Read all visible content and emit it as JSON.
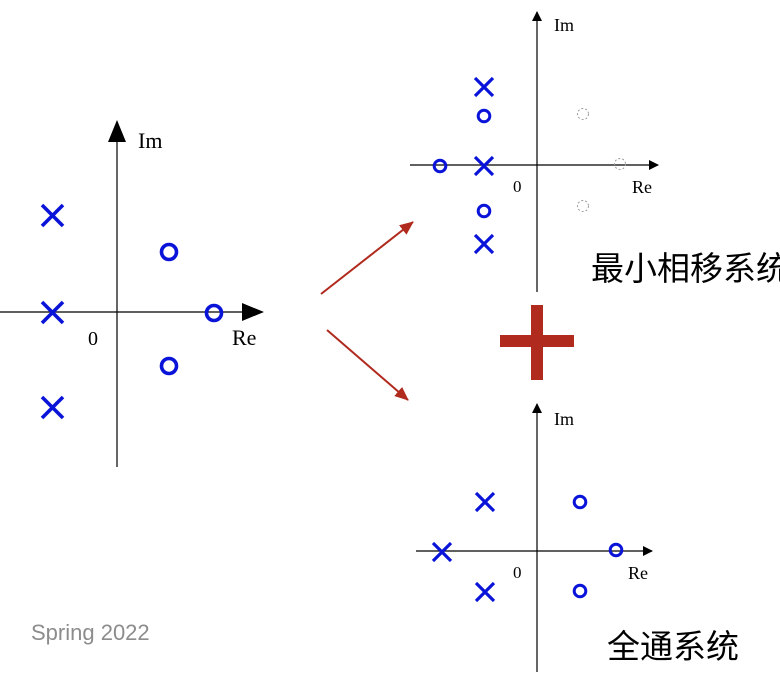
{
  "plots": {
    "original": {
      "im": "Im",
      "re": "Re",
      "origin": "0"
    },
    "minimum_phase": {
      "im": "Im",
      "re": "Re",
      "origin": "0"
    },
    "all_pass": {
      "im": "Im",
      "re": "Re",
      "origin": "0"
    }
  },
  "labels": {
    "minimum_phase": "最小相移系统",
    "all_pass": "全通系统"
  },
  "footer": {
    "text": "Spring 2022"
  },
  "colors": {
    "marker": "#0a14d8",
    "arrow": "#b02a1e",
    "ghost": "#9a9a9a"
  }
}
